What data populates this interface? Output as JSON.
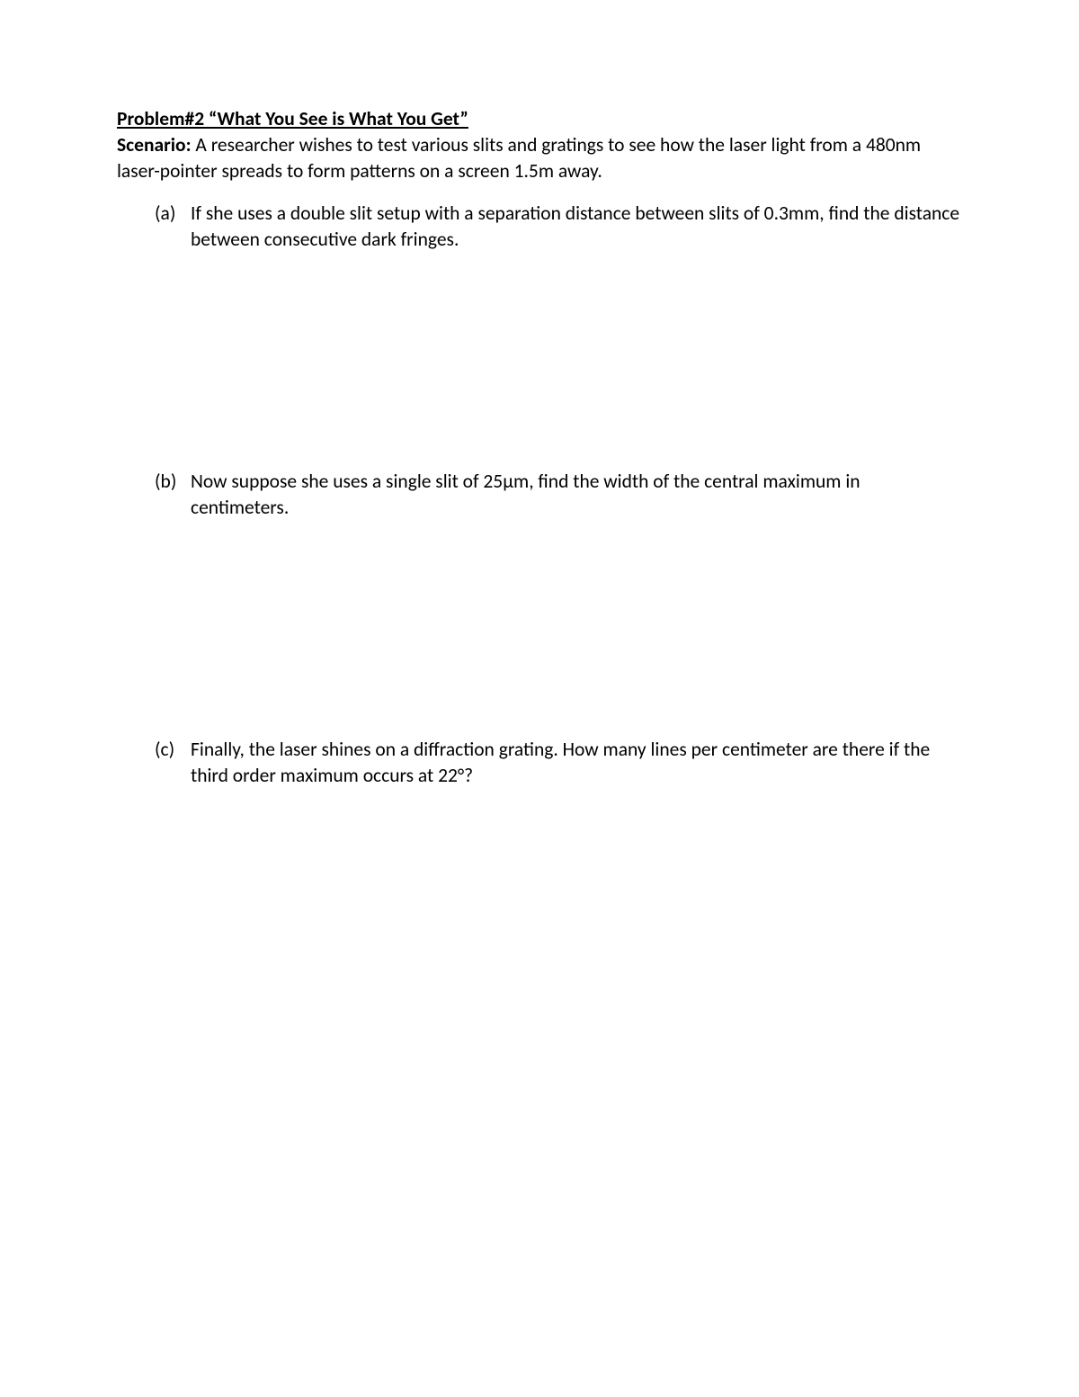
{
  "title": "Problem#2 “What You See is What You Get”",
  "scenario_label": "Scenario:",
  "scenario_text": " A researcher wishes to test various slits and gratings to see how the laser light from a 480nm laser-pointer spreads to form patterns on a screen 1.5m away.",
  "parts": {
    "a": {
      "label": "(a)",
      "text": "If she uses a double slit setup with a separation distance between slits of 0.3mm, find the distance between consecutive dark fringes."
    },
    "b": {
      "label": "(b)",
      "text": "Now suppose she uses a single slit of 25μm, find the width of the central maximum in centimeters."
    },
    "c": {
      "label": "(c)",
      "text": "Finally, the laser shines on a diffraction grating.  How many lines per centimeter are there if the third order maximum occurs at 22°?"
    }
  }
}
